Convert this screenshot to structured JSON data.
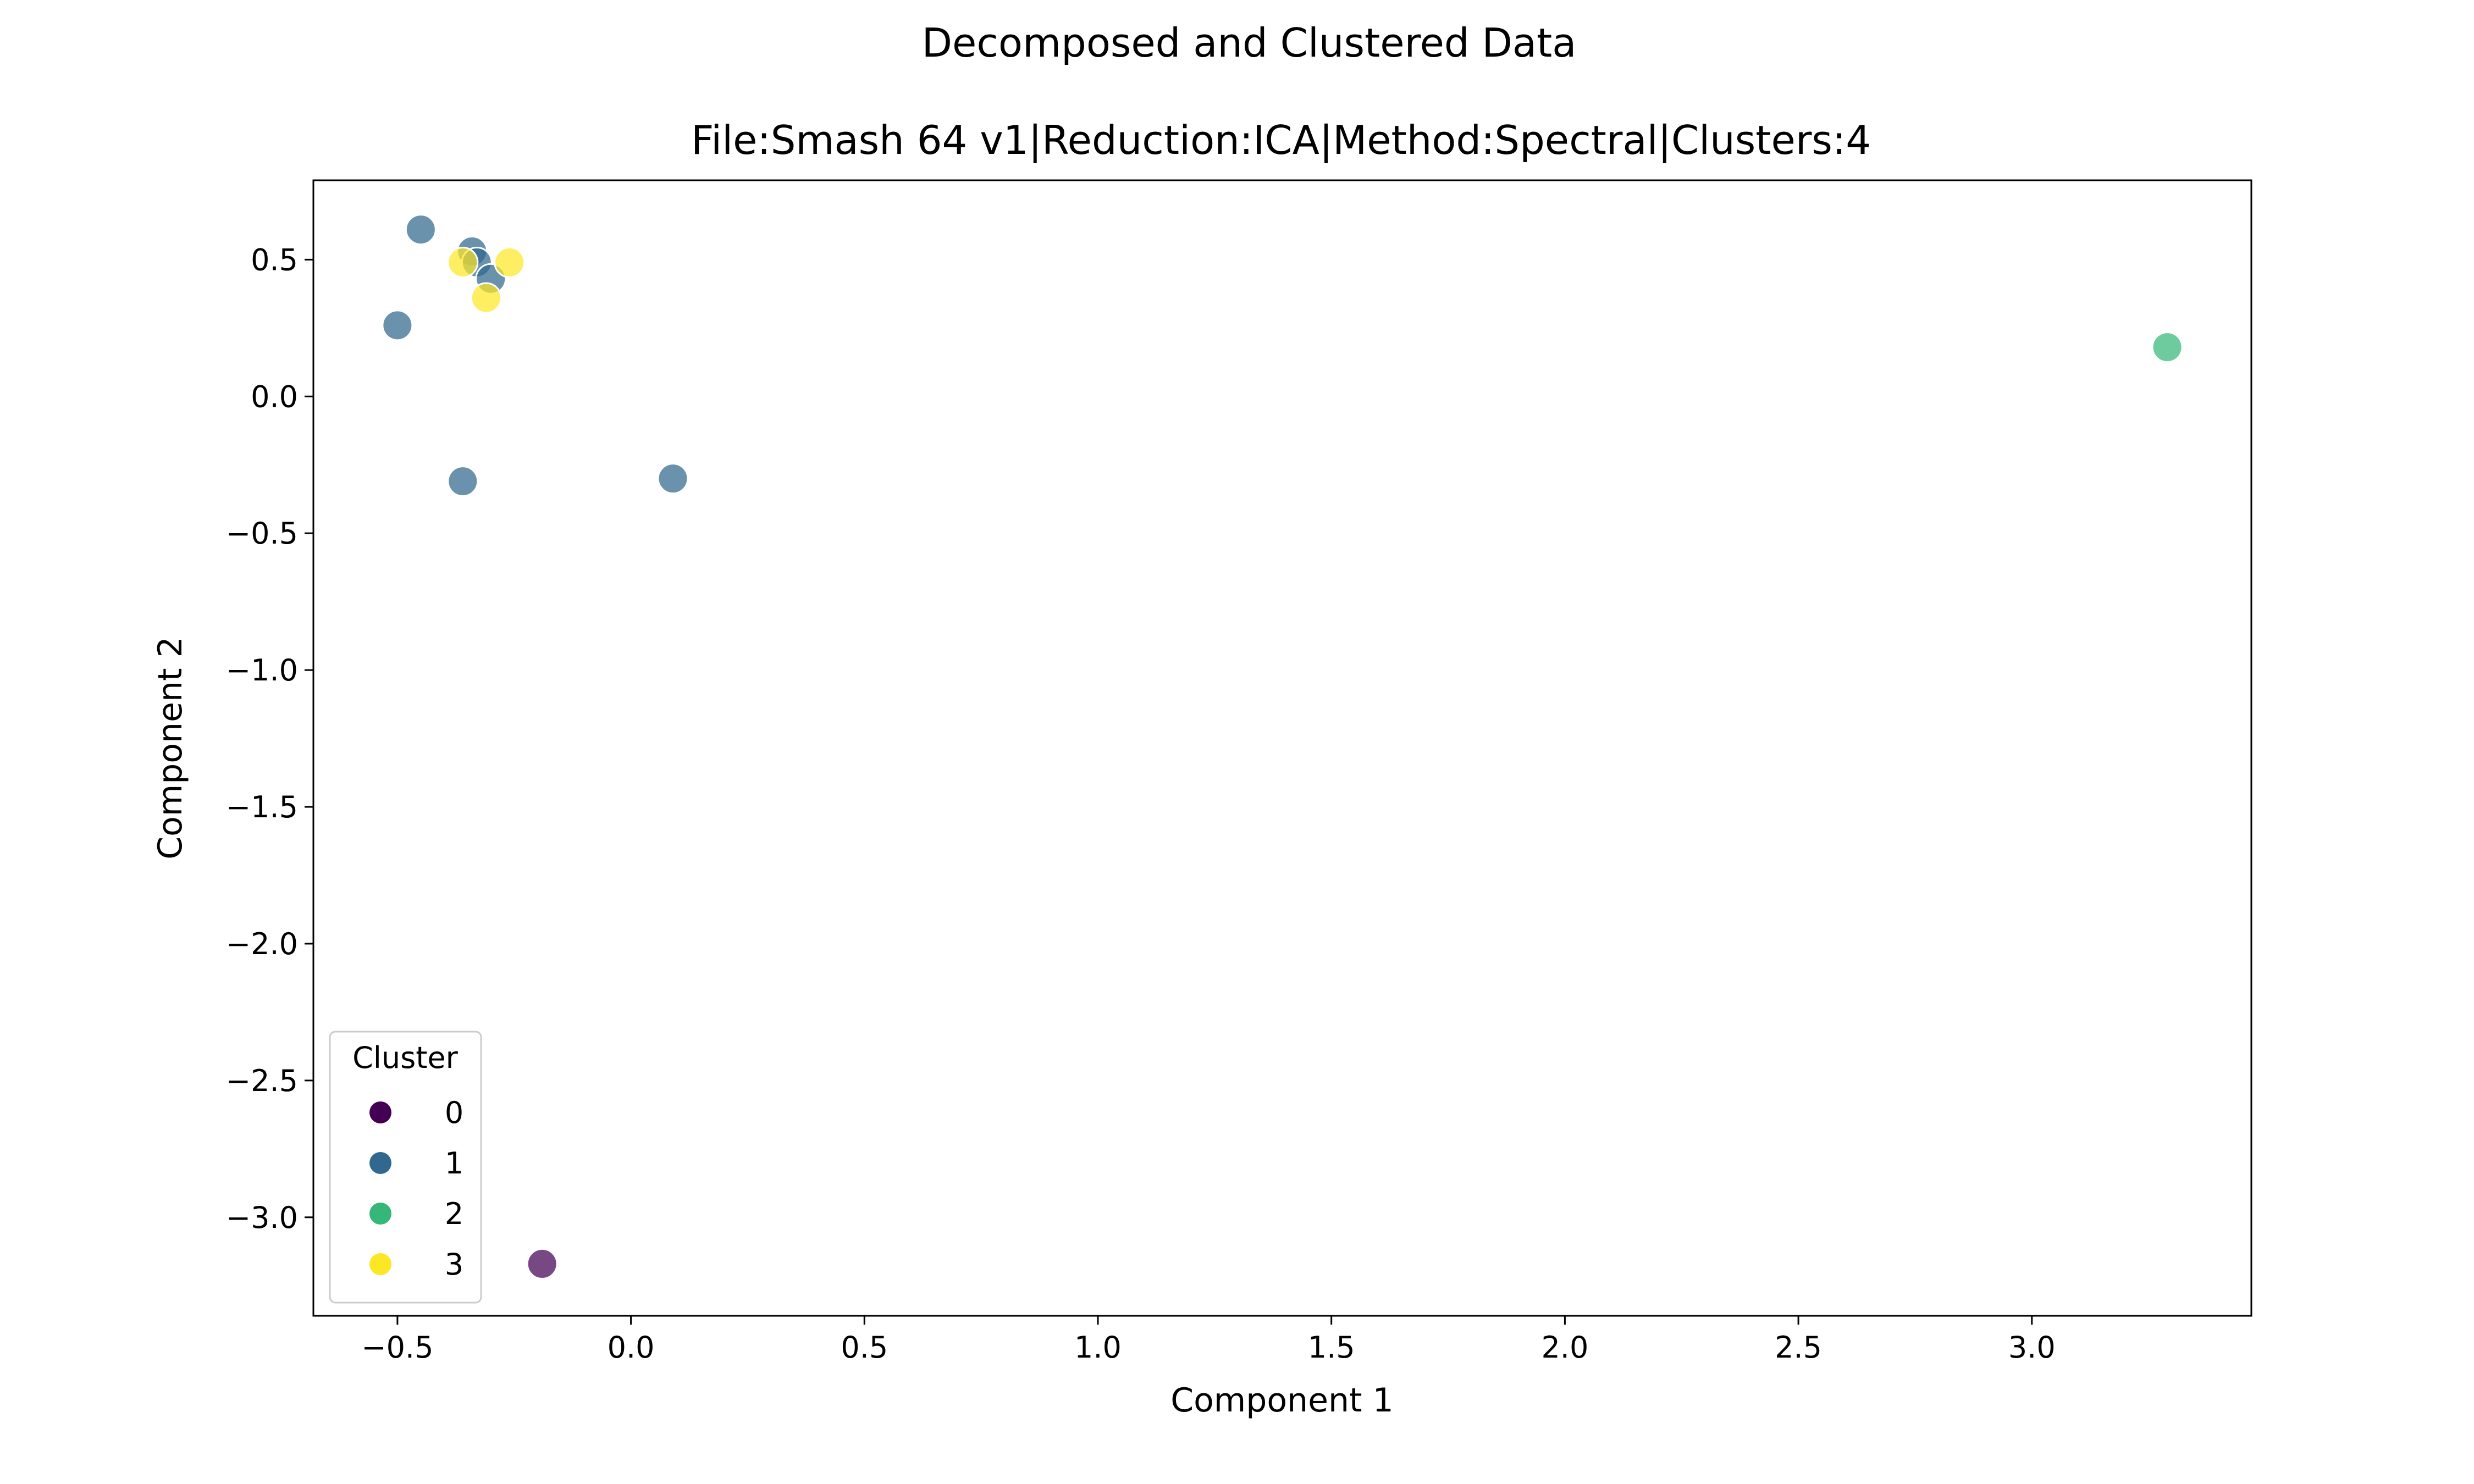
{
  "chart_data": {
    "type": "scatter",
    "suptitle": "Decomposed and Clustered Data",
    "title": "File:Smash 64 v1|Reduction:ICA|Method:Spectral|Clusters:4",
    "xlabel": "Component 1",
    "ylabel": "Component 2",
    "xlim": [
      -0.68,
      3.47
    ],
    "ylim": [
      -3.36,
      0.79
    ],
    "xticks": [
      -0.5,
      0.0,
      0.5,
      1.0,
      1.5,
      2.0,
      2.5,
      3.0
    ],
    "yticks": [
      0.5,
      0.0,
      -0.5,
      -1.0,
      -1.5,
      -2.0,
      -2.5,
      -3.0
    ],
    "xtick_labels": [
      "−0.5",
      "0.0",
      "0.5",
      "1.0",
      "1.5",
      "2.0",
      "2.5",
      "3.0"
    ],
    "ytick_labels": [
      "0.5",
      "0.0",
      "−0.5",
      "−1.0",
      "−1.5",
      "−2.0",
      "−2.5",
      "−3.0"
    ],
    "grid": false,
    "legend": {
      "title": "Cluster",
      "position": "bottom-left",
      "entries": [
        {
          "label": "0",
          "color": "#440154"
        },
        {
          "label": "1",
          "color": "#31688e"
        },
        {
          "label": "2",
          "color": "#35b779"
        },
        {
          "label": "3",
          "color": "#fde725"
        }
      ]
    },
    "series": [
      {
        "name": "0",
        "color": "#440154",
        "points": [
          {
            "x": -0.19,
            "y": -3.17
          }
        ]
      },
      {
        "name": "1",
        "color": "#31688e",
        "points": [
          {
            "x": -0.45,
            "y": 0.61
          },
          {
            "x": -0.5,
            "y": 0.26
          },
          {
            "x": -0.34,
            "y": 0.53
          },
          {
            "x": -0.33,
            "y": 0.49
          },
          {
            "x": -0.3,
            "y": 0.43
          },
          {
            "x": -0.36,
            "y": -0.31
          },
          {
            "x": 0.09,
            "y": -0.3
          }
        ]
      },
      {
        "name": "2",
        "color": "#35b779",
        "points": [
          {
            "x": 3.29,
            "y": 0.18
          }
        ]
      },
      {
        "name": "3",
        "color": "#fde725",
        "points": [
          {
            "x": -0.36,
            "y": 0.49
          },
          {
            "x": -0.31,
            "y": 0.36
          },
          {
            "x": -0.26,
            "y": 0.49
          }
        ]
      }
    ]
  }
}
